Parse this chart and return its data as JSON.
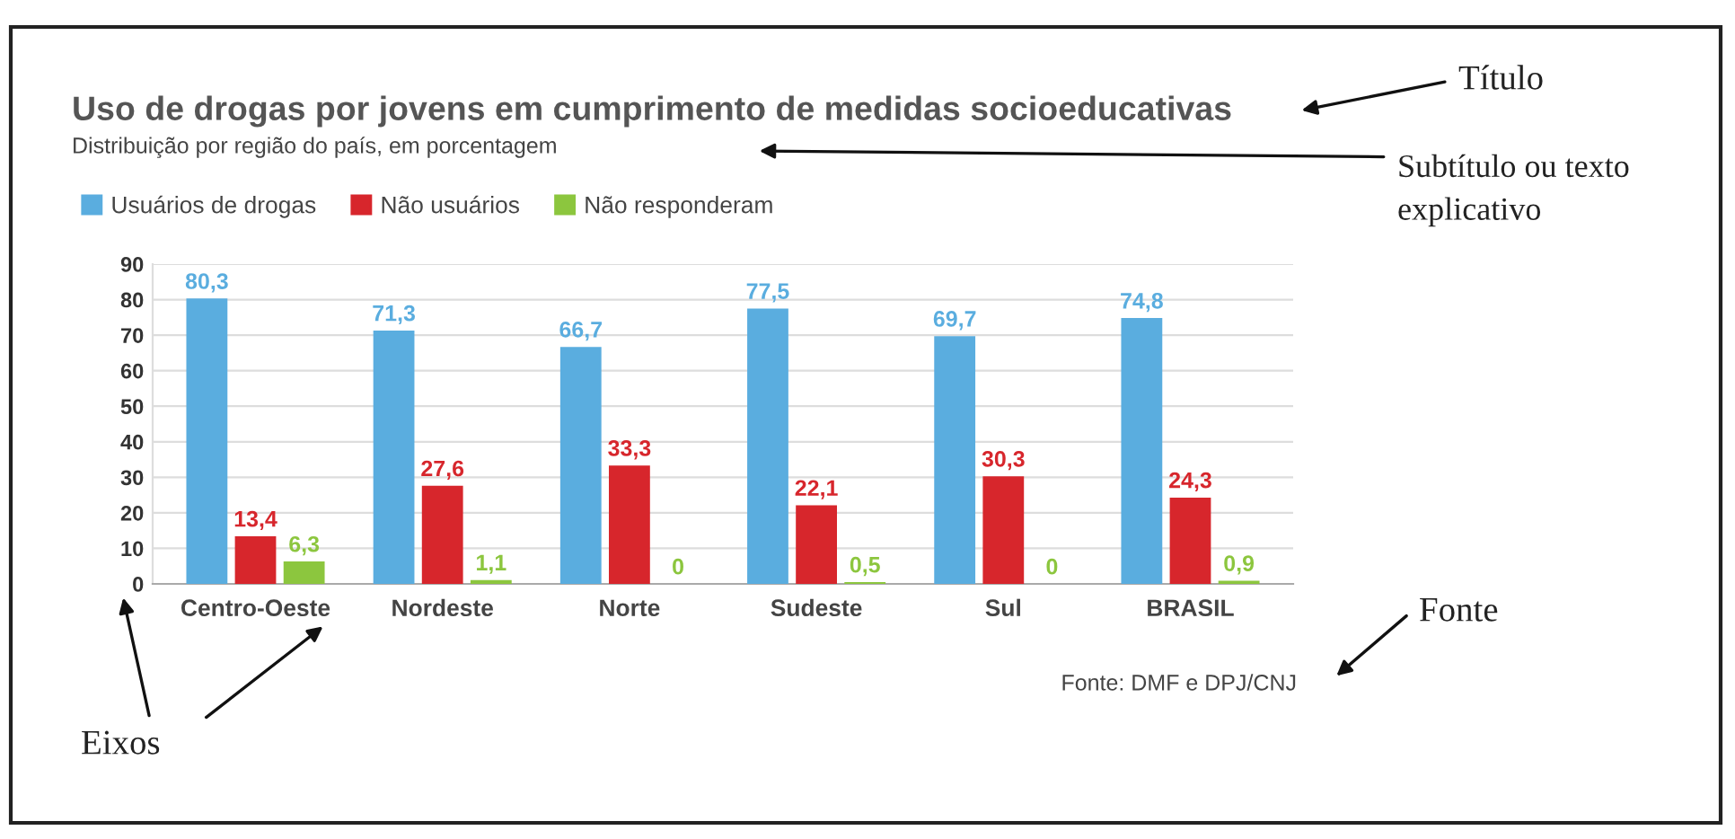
{
  "chart_data": {
    "type": "bar",
    "title": "Uso de drogas por jovens em cumprimento de medidas socioeducativas",
    "subtitle": "Distribuição por região do país, em porcentagem",
    "categories": [
      "Centro-Oeste",
      "Nordeste",
      "Norte",
      "Sudeste",
      "Sul",
      "BRASIL"
    ],
    "series": [
      {
        "name": "Usuários de drogas",
        "color": "#5aaddf",
        "values": [
          80.3,
          71.3,
          66.7,
          77.5,
          69.7,
          74.8
        ]
      },
      {
        "name": "Não usuários",
        "color": "#d7262c",
        "values": [
          13.4,
          27.6,
          33.3,
          22.1,
          30.3,
          24.3
        ]
      },
      {
        "name": "Não responderam",
        "color": "#8cc63e",
        "values": [
          6.3,
          1.1,
          0,
          0.5,
          0,
          0.9
        ]
      }
    ],
    "value_labels": [
      [
        "80,3",
        "71,3",
        "66,7",
        "77,5",
        "69,7",
        "74,8"
      ],
      [
        "13,4",
        "27,6",
        "33,3",
        "22,1",
        "30,3",
        "24,3"
      ],
      [
        "6,3",
        "1,1",
        "0",
        "0,5",
        "0",
        "0,9"
      ]
    ],
    "ylim": [
      0,
      90
    ],
    "yticks": [
      0,
      10,
      20,
      30,
      40,
      50,
      60,
      70,
      80,
      90
    ],
    "grid": "y",
    "legend": "top left",
    "annotations": [
      "Fonte: DMF e DPJ/CNJ",
      "Título",
      "Subtítulo ou texto explicativo",
      "Fonte",
      "Eixos"
    ]
  }
}
